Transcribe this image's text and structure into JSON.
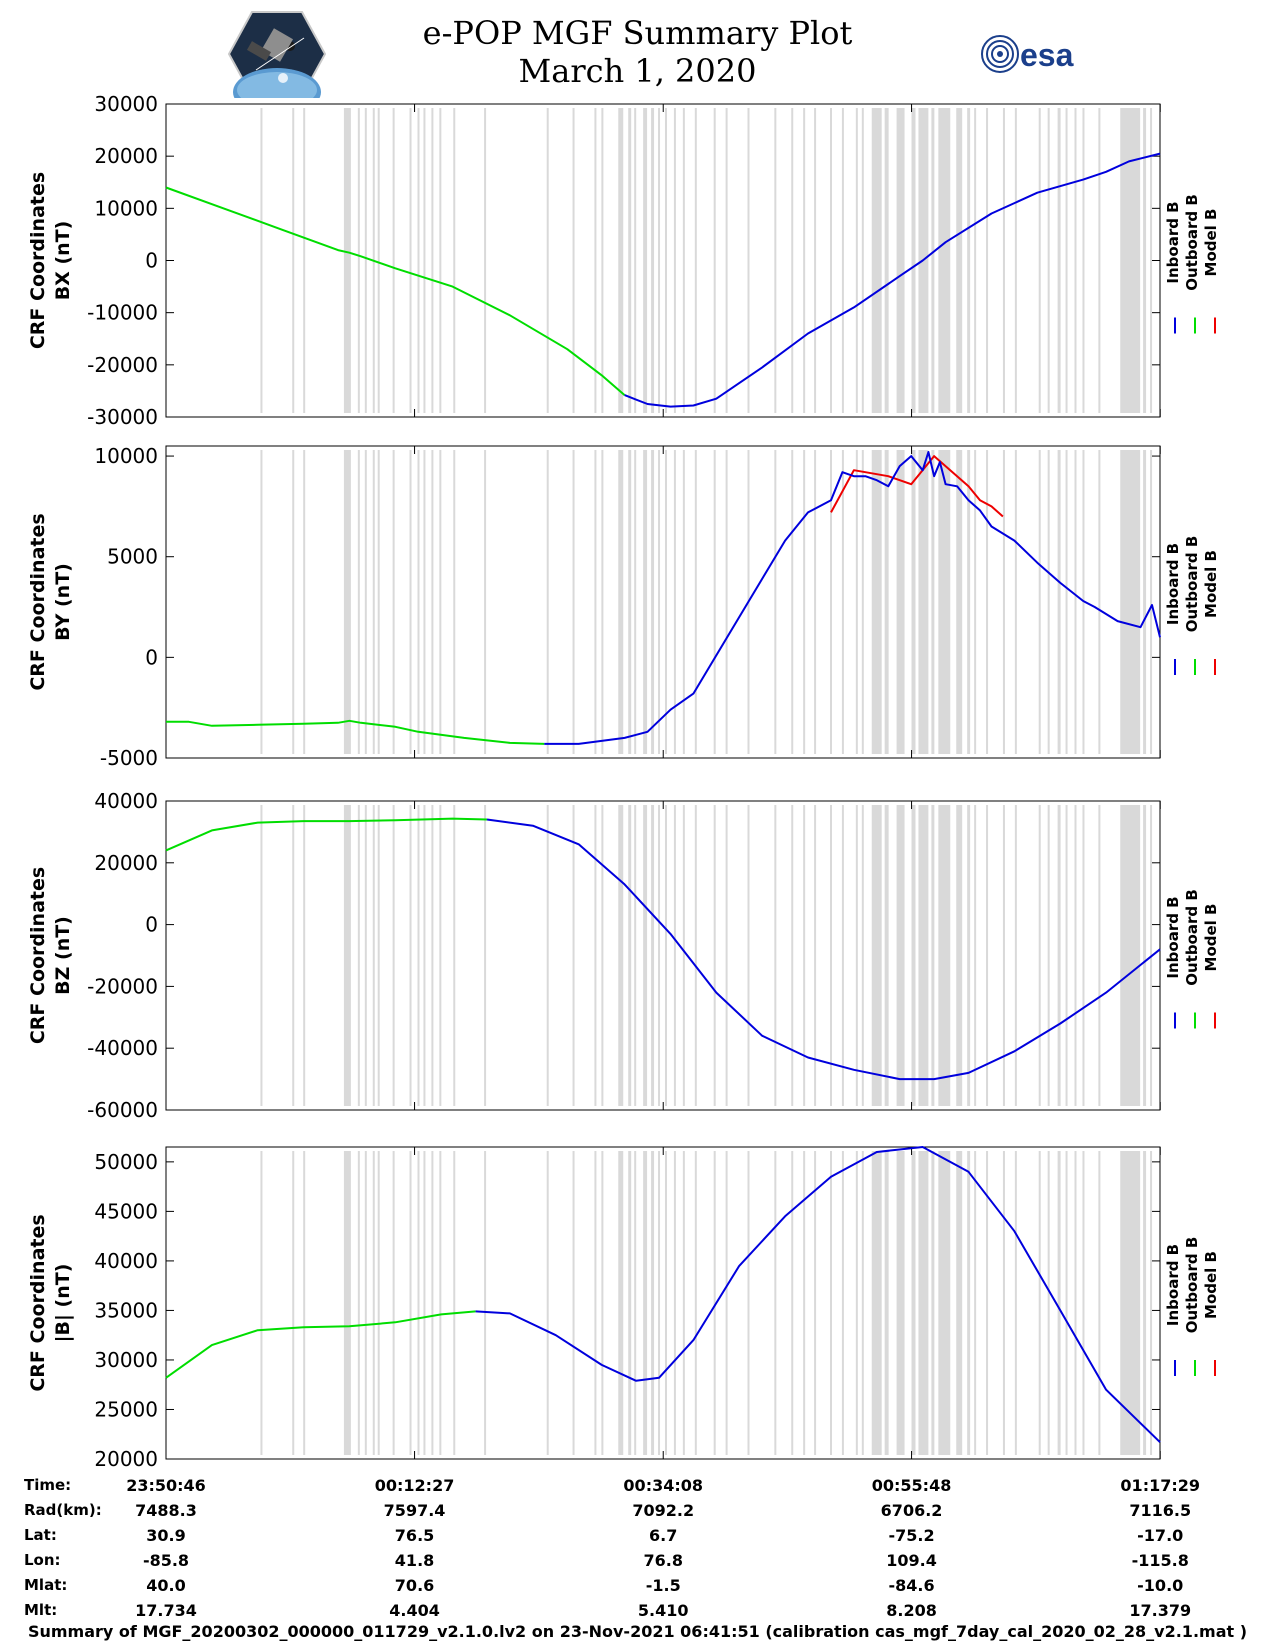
{
  "title": "e-POP MGF Summary Plot",
  "date": "March 1, 2020",
  "logos": {
    "left": "e-POP CASSIOPE mission logo",
    "right": "esa"
  },
  "colors": {
    "inboard": "#0000dd",
    "outboard": "#00dd00",
    "model": "#ee0000",
    "gap": "#d9d9d9"
  },
  "legend": [
    "Inboard B",
    "Outboard B",
    "Model B"
  ],
  "footer": "Summary of MGF_20200302_000000_011729_v2.1.0.lv2 on 23-Nov-2021 06:41:51 (calibration cas_mgf_7day_cal_2020_02_28_v2.1.mat )",
  "info_table": {
    "labels": [
      "Time:",
      "Rad(km):",
      "Lat:",
      "Lon:",
      "Mlat:",
      "Mlt:"
    ],
    "columns": [
      {
        "time": "23:50:46",
        "rad": "7488.3",
        "lat": "30.9",
        "lon": "-85.8",
        "mlat": "40.0",
        "mlt": "17.734"
      },
      {
        "time": "00:12:27",
        "rad": "7597.4",
        "lat": "76.5",
        "lon": "41.8",
        "mlat": "70.6",
        "mlt": "4.404"
      },
      {
        "time": "00:34:08",
        "rad": "7092.2",
        "lat": "6.7",
        "lon": "76.8",
        "mlat": "-1.5",
        "mlt": "5.410"
      },
      {
        "time": "00:55:48",
        "rad": "6706.2",
        "lat": "-75.2",
        "lon": "109.4",
        "mlat": "-84.6",
        "mlt": "8.208"
      },
      {
        "time": "01:17:29",
        "rad": "7116.5",
        "lat": "-17.0",
        "lon": "-115.8",
        "mlat": "-10.0",
        "mlt": "17.379"
      }
    ]
  },
  "chart_data": [
    {
      "type": "line",
      "ylabel": [
        "CRF Coordinates",
        "BX (nT)"
      ],
      "ylim": [
        -30000,
        30000
      ],
      "yticks": [
        30000,
        20000,
        10000,
        0,
        -10000,
        -20000,
        -30000
      ],
      "x_range_min": [
        0,
        86.7
      ],
      "x_ticks_min": [
        0,
        21.68,
        43.37,
        65.03,
        86.72
      ],
      "series": [
        {
          "name": "Outboard B",
          "color_key": "outboard",
          "x": [
            0,
            5,
            10,
            15,
            16,
            17,
            20,
            25,
            30,
            35,
            38,
            40
          ],
          "y": [
            14000,
            10000,
            6000,
            2000,
            1500,
            800,
            -1500,
            -5000,
            -10500,
            -17000,
            -22000,
            -25800
          ]
        },
        {
          "name": "Inboard B",
          "color_key": "inboard",
          "x": [
            40,
            42,
            44,
            46,
            48,
            52,
            56,
            60,
            64,
            66,
            68,
            72,
            76,
            80,
            82,
            84,
            86.7
          ],
          "y": [
            -25800,
            -27500,
            -28000,
            -27800,
            -26500,
            -20500,
            -14000,
            -9000,
            -3000,
            0,
            3500,
            9000,
            13000,
            15500,
            17000,
            19000,
            20500
          ]
        }
      ]
    },
    {
      "type": "line",
      "ylabel": [
        "CRF Coordinates",
        "BY (nT)"
      ],
      "ylim": [
        -5000,
        10500
      ],
      "yticks": [
        10000,
        5000,
        0,
        -5000
      ],
      "x_range_min": [
        0,
        86.7
      ],
      "x_ticks_min": [
        0,
        21.68,
        43.37,
        65.03,
        86.72
      ],
      "series": [
        {
          "name": "Outboard B",
          "color_key": "outboard",
          "x": [
            0,
            2,
            4,
            8,
            12,
            15,
            16,
            17,
            20,
            22,
            26,
            30,
            33
          ],
          "y": [
            -3200,
            -3200,
            -3400,
            -3350,
            -3300,
            -3250,
            -3150,
            -3250,
            -3450,
            -3700,
            -4000,
            -4250,
            -4300
          ]
        },
        {
          "name": "Model B",
          "color_key": "model",
          "x": [
            58,
            60,
            61,
            63,
            65,
            67,
            70,
            71,
            72,
            73
          ],
          "y": [
            7200,
            9300,
            9200,
            9000,
            8600,
            10000,
            8500,
            7800,
            7500,
            7000
          ]
        },
        {
          "name": "Inboard B",
          "color_key": "inboard",
          "x": [
            33,
            36,
            40,
            42,
            44,
            46,
            50,
            54,
            56,
            58,
            59,
            60,
            61,
            62,
            63,
            64,
            65,
            66,
            66.5,
            67,
            67.5,
            68,
            69,
            70,
            71,
            72,
            74,
            76,
            78,
            80,
            81,
            83,
            85,
            86,
            86.7
          ],
          "y": [
            -4300,
            -4300,
            -4000,
            -3700,
            -2600,
            -1800,
            2000,
            5800,
            7200,
            7800,
            9200,
            9000,
            9000,
            8800,
            8500,
            9500,
            10000,
            9300,
            10200,
            9000,
            9700,
            8600,
            8500,
            7800,
            7300,
            6500,
            5800,
            4700,
            3700,
            2800,
            2500,
            1800,
            1500,
            2600,
            1000
          ]
        }
      ]
    },
    {
      "type": "line",
      "ylabel": [
        "CRF Coordinates",
        "BZ (nT)"
      ],
      "ylim": [
        -60000,
        40000
      ],
      "yticks": [
        40000,
        20000,
        0,
        -20000,
        -40000,
        -60000
      ],
      "x_range_min": [
        0,
        86.7
      ],
      "x_ticks_min": [
        0,
        21.68,
        43.37,
        65.03,
        86.72
      ],
      "series": [
        {
          "name": "Outboard B",
          "color_key": "outboard",
          "x": [
            0,
            4,
            8,
            12,
            16,
            20,
            25,
            28
          ],
          "y": [
            24000,
            30500,
            33000,
            33500,
            33500,
            33800,
            34300,
            34000
          ]
        },
        {
          "name": "Inboard B",
          "color_key": "inboard",
          "x": [
            28,
            32,
            36,
            40,
            44,
            48,
            52,
            56,
            60,
            64,
            67,
            70,
            74,
            78,
            82,
            86.7
          ],
          "y": [
            34000,
            32000,
            26000,
            13000,
            -3000,
            -22000,
            -36000,
            -43000,
            -47000,
            -50000,
            -50000,
            -48000,
            -41000,
            -32000,
            -22000,
            -8000
          ]
        }
      ]
    },
    {
      "type": "line",
      "ylabel": [
        "CRF Coordinates",
        "|B| (nT)"
      ],
      "ylim": [
        20000,
        51500
      ],
      "yticks": [
        50000,
        45000,
        40000,
        35000,
        30000,
        25000,
        20000
      ],
      "x_range_min": [
        0,
        86.7
      ],
      "x_ticks_min": [
        0,
        21.68,
        43.37,
        65.03,
        86.72
      ],
      "series": [
        {
          "name": "Outboard B",
          "color_key": "outboard",
          "x": [
            0,
            4,
            8,
            12,
            16,
            20,
            24,
            27
          ],
          "y": [
            28200,
            31500,
            33000,
            33300,
            33400,
            33800,
            34600,
            34900
          ]
        },
        {
          "name": "Inboard B",
          "color_key": "inboard",
          "x": [
            27,
            30,
            34,
            38,
            41,
            43,
            46,
            50,
            54,
            58,
            62,
            66,
            70,
            74,
            78,
            82,
            86.7
          ],
          "y": [
            34900,
            34700,
            32500,
            29500,
            27900,
            28200,
            32000,
            39500,
            44500,
            48500,
            51000,
            51500,
            49000,
            43000,
            35000,
            27000,
            21700
          ]
        }
      ]
    }
  ]
}
